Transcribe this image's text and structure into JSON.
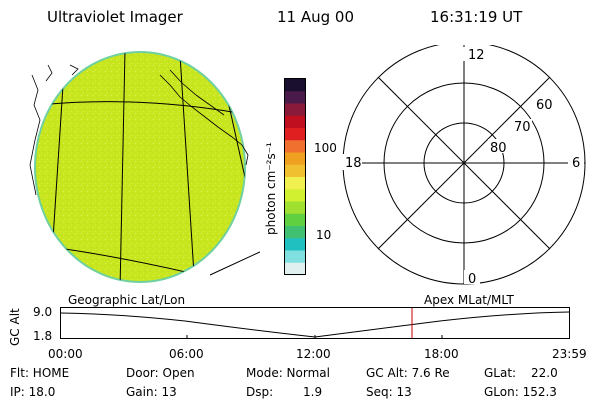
{
  "header": {
    "title": "Ultraviolet Imager",
    "date": "11 Aug 00",
    "time": "16:31:19 UT"
  },
  "colorbar": {
    "label": "photon cm⁻²s⁻¹",
    "tick_100": "100",
    "tick_10": "10",
    "colors": [
      "#1a0f2e",
      "#4a1a4a",
      "#8a1a3a",
      "#c01020",
      "#e02020",
      "#f07030",
      "#f0a020",
      "#f0c030",
      "#f0f050",
      "#d0f030",
      "#a0e030",
      "#60d040",
      "#40c070",
      "#20c0c0",
      "#80e0e0",
      "#e0f0f0"
    ]
  },
  "polar": {
    "mlt_12": "12",
    "mlt_18": "18",
    "mlt_6": "6",
    "mlt_0": "0",
    "lat_60": "60",
    "lat_70": "70",
    "lat_80": "80"
  },
  "timeline": {
    "left_label": "Geographic Lat/Lon",
    "right_label": "Apex MLat/MLT",
    "axis_label": "GC Alt",
    "y_top": "9.0",
    "y_bottom": "1.8",
    "ticks": [
      "00:00",
      "06:00",
      "12:00",
      "18:00",
      "23:59"
    ],
    "marker_color": "#cc0000"
  },
  "info": {
    "flt": "Flt: HOME",
    "ip": "IP: 18.0",
    "door": "Door: Open",
    "gain": "Gain: 13",
    "mode": "Mode: Normal",
    "dsp": "Dsp:",
    "dsp_val": "1.9",
    "gc_alt": "GC Alt: 7.6 Re",
    "seq": "Seq: 13",
    "glat": "GLat:",
    "glat_val": "22.0",
    "glon": "GLon: 152.3"
  },
  "globe_color": "#c8e61e"
}
